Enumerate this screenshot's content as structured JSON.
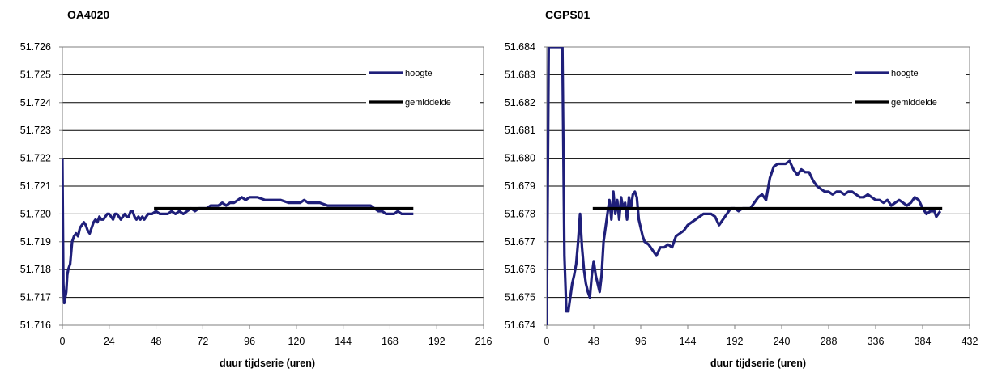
{
  "chart_data": [
    {
      "type": "line",
      "title": "OA4020",
      "xlabel": "duur tijdserie (uren)",
      "ylabel": "",
      "xlim": [
        0,
        216
      ],
      "ylim": [
        51.716,
        51.726
      ],
      "xticks": [
        0,
        24,
        48,
        72,
        96,
        120,
        144,
        168,
        192,
        216
      ],
      "yticks": [
        51.716,
        51.717,
        51.718,
        51.719,
        51.72,
        51.721,
        51.722,
        51.723,
        51.724,
        51.725,
        51.726
      ],
      "ytick_decimals": 3,
      "grid": "horizontal",
      "legend_position": "top-right",
      "series": [
        {
          "name": "hoogte",
          "color": "#1f1f7a",
          "x": [
            0,
            0.5,
            1,
            1.5,
            2,
            2.5,
            3,
            4,
            5,
            6,
            7,
            8,
            9,
            10,
            11,
            12,
            13,
            14,
            15,
            16,
            17,
            18,
            19,
            20,
            21,
            22,
            23,
            24,
            25,
            26,
            27,
            28,
            29,
            30,
            31,
            32,
            33,
            34,
            35,
            36,
            37,
            38,
            39,
            40,
            41,
            42,
            43,
            44,
            46,
            48,
            50,
            52,
            54,
            56,
            58,
            60,
            62,
            64,
            66,
            68,
            70,
            72,
            74,
            76,
            78,
            80,
            82,
            84,
            86,
            88,
            90,
            92,
            94,
            96,
            100,
            104,
            108,
            112,
            116,
            120,
            122,
            124,
            126,
            128,
            132,
            136,
            140,
            144,
            148,
            152,
            156,
            158,
            160,
            162,
            164,
            166,
            168,
            170,
            172,
            174,
            176,
            178,
            180
          ],
          "y": [
            51.722,
            51.7175,
            51.7168,
            51.717,
            51.7172,
            51.7178,
            51.718,
            51.7182,
            51.719,
            51.7192,
            51.7193,
            51.7192,
            51.7195,
            51.7196,
            51.7197,
            51.7196,
            51.7194,
            51.7193,
            51.7195,
            51.7197,
            51.7198,
            51.7197,
            51.7199,
            51.7198,
            51.7198,
            51.7199,
            51.72,
            51.72,
            51.7199,
            51.7198,
            51.72,
            51.72,
            51.7199,
            51.7198,
            51.7199,
            51.72,
            51.7199,
            51.7199,
            51.7201,
            51.7201,
            51.7199,
            51.7198,
            51.7199,
            51.7198,
            51.7199,
            51.7198,
            51.7199,
            51.72,
            51.72,
            51.7201,
            51.72,
            51.72,
            51.72,
            51.7201,
            51.72,
            51.7201,
            51.72,
            51.7201,
            51.7202,
            51.7201,
            51.7202,
            51.7202,
            51.7202,
            51.7203,
            51.7203,
            51.7203,
            51.7204,
            51.7203,
            51.7204,
            51.7204,
            51.7205,
            51.7206,
            51.7205,
            51.7206,
            51.7206,
            51.7205,
            51.7205,
            51.7205,
            51.7204,
            51.7204,
            51.7204,
            51.7205,
            51.7204,
            51.7204,
            51.7204,
            51.7203,
            51.7203,
            51.7203,
            51.7203,
            51.7203,
            51.7203,
            51.7203,
            51.7202,
            51.7201,
            51.7201,
            51.72,
            51.72,
            51.72,
            51.7201,
            51.72,
            51.72,
            51.72,
            51.72
          ]
        },
        {
          "name": "gemiddelde",
          "color": "#000000",
          "x": [
            47,
            180
          ],
          "y": [
            51.7202,
            51.7202
          ]
        }
      ]
    },
    {
      "type": "line",
      "title": "CGPS01",
      "xlabel": "duur tijdserie (uren)",
      "ylabel": "",
      "xlim": [
        0,
        432
      ],
      "ylim": [
        51.674,
        51.684
      ],
      "xticks": [
        0,
        48,
        96,
        144,
        192,
        240,
        288,
        336,
        384,
        432
      ],
      "yticks": [
        51.674,
        51.675,
        51.676,
        51.677,
        51.678,
        51.679,
        51.68,
        51.681,
        51.682,
        51.683,
        51.684
      ],
      "ytick_decimals": 3,
      "grid": "horizontal",
      "legend_position": "top-right",
      "series": [
        {
          "name": "hoogte",
          "color": "#1f1f7a",
          "x": [
            0,
            2,
            3,
            4,
            5,
            6,
            8,
            10,
            12,
            14,
            16,
            18,
            20,
            22,
            24,
            26,
            28,
            30,
            32,
            34,
            36,
            38,
            40,
            42,
            44,
            46,
            48,
            50,
            52,
            54,
            56,
            58,
            60,
            62,
            64,
            66,
            68,
            70,
            72,
            74,
            76,
            78,
            80,
            82,
            84,
            86,
            88,
            90,
            92,
            94,
            96,
            98,
            100,
            104,
            108,
            112,
            116,
            120,
            124,
            128,
            132,
            136,
            140,
            144,
            148,
            152,
            156,
            160,
            164,
            168,
            172,
            176,
            180,
            184,
            188,
            192,
            196,
            200,
            204,
            208,
            212,
            216,
            220,
            224,
            228,
            232,
            236,
            240,
            244,
            248,
            252,
            256,
            260,
            264,
            268,
            272,
            276,
            280,
            284,
            288,
            292,
            296,
            300,
            304,
            308,
            312,
            316,
            320,
            324,
            328,
            332,
            336,
            340,
            344,
            348,
            352,
            356,
            360,
            364,
            368,
            372,
            376,
            380,
            384,
            388,
            392,
            396,
            398,
            400,
            402
          ],
          "y": [
            51.674,
            51.684,
            51.684,
            51.684,
            51.684,
            51.684,
            51.684,
            51.684,
            51.684,
            51.684,
            51.684,
            51.6765,
            51.6745,
            51.6745,
            51.675,
            51.6755,
            51.6758,
            51.6762,
            51.677,
            51.678,
            51.6768,
            51.676,
            51.6755,
            51.6752,
            51.675,
            51.6758,
            51.6763,
            51.6758,
            51.6755,
            51.6752,
            51.6758,
            51.677,
            51.6775,
            51.678,
            51.6785,
            51.6778,
            51.6788,
            51.678,
            51.6785,
            51.6778,
            51.6786,
            51.6782,
            51.6784,
            51.6778,
            51.6786,
            51.6782,
            51.6787,
            51.6788,
            51.6786,
            51.6778,
            51.6775,
            51.6772,
            51.677,
            51.6769,
            51.6767,
            51.6765,
            51.6768,
            51.6768,
            51.6769,
            51.6768,
            51.6772,
            51.6773,
            51.6774,
            51.6776,
            51.6777,
            51.6778,
            51.6779,
            51.678,
            51.678,
            51.678,
            51.6779,
            51.6776,
            51.6778,
            51.678,
            51.6782,
            51.6782,
            51.6781,
            51.6782,
            51.6782,
            51.6782,
            51.6784,
            51.6786,
            51.6787,
            51.6785,
            51.6793,
            51.6797,
            51.6798,
            51.6798,
            51.6798,
            51.6799,
            51.6796,
            51.6794,
            51.6796,
            51.6795,
            51.6795,
            51.6792,
            51.679,
            51.6789,
            51.6788,
            51.6788,
            51.6787,
            51.6788,
            51.6788,
            51.6787,
            51.6788,
            51.6788,
            51.6787,
            51.6786,
            51.6786,
            51.6787,
            51.6786,
            51.6785,
            51.6785,
            51.6784,
            51.6785,
            51.6783,
            51.6784,
            51.6785,
            51.6784,
            51.6783,
            51.6784,
            51.6786,
            51.6785,
            51.6782,
            51.678,
            51.6781,
            51.6781,
            51.6779,
            51.678,
            51.6781
          ]
        },
        {
          "name": "gemiddelde",
          "color": "#000000",
          "x": [
            47,
            404
          ],
          "y": [
            51.6782,
            51.6782
          ]
        }
      ]
    }
  ]
}
